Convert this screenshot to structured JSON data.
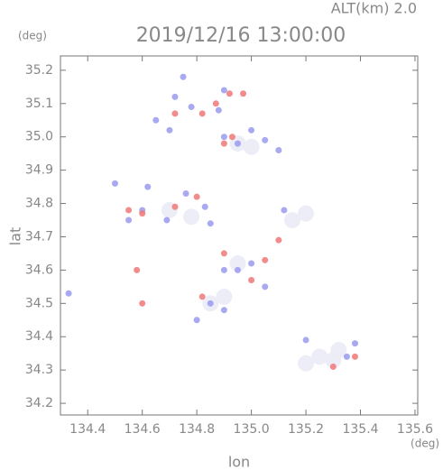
{
  "chart_data": {
    "type": "scatter",
    "title": "2019/12/16 13:00:00",
    "subtitle": "ALT(km) 2.0",
    "x_label": "lon",
    "x_unit": "(deg)",
    "y_label": "lat",
    "y_unit": "(deg)",
    "xlim": [
      134.3,
      135.61
    ],
    "ylim": [
      34.165,
      35.243
    ],
    "xticks": [
      134.4,
      134.6,
      134.8,
      {
        "value": 135,
        "label": "135.0"
      },
      135.2,
      135.4,
      135.6
    ],
    "yticks": [
      34.2,
      34.3,
      34.4,
      34.5,
      34.6,
      34.7,
      34.8,
      34.9,
      {
        "value": 35,
        "label": "35.0"
      },
      35.1,
      35.2
    ],
    "series": [
      {
        "color": "#ebebf6",
        "x": [
          134.95,
          135.0,
          134.7,
          134.78,
          134.95,
          134.85,
          134.9,
          135.25,
          135.3,
          135.32,
          135.2,
          135.2,
          135.15
        ],
        "y": [
          34.98,
          34.97,
          34.78,
          34.76,
          34.62,
          34.5,
          34.52,
          34.34,
          34.33,
          34.36,
          34.32,
          34.77,
          34.75
        ]
      },
      {
        "color": "#9a9af0",
        "x": [
          134.33,
          134.5,
          134.62,
          134.76,
          134.83,
          134.85,
          134.72,
          134.78,
          134.65,
          134.7,
          134.88,
          134.9,
          134.95,
          135.05,
          135.1,
          134.6,
          134.9,
          134.95,
          135.0,
          134.85,
          134.8,
          134.9,
          135.2,
          135.35,
          135.38,
          135.05,
          134.69,
          134.55,
          135.12,
          134.9,
          135.0,
          134.75
        ],
        "y": [
          34.53,
          34.86,
          34.85,
          34.83,
          34.79,
          34.74,
          35.12,
          35.09,
          35.05,
          35.02,
          35.08,
          35.0,
          34.98,
          34.99,
          34.96,
          34.78,
          34.6,
          34.6,
          34.62,
          34.5,
          34.45,
          34.48,
          34.39,
          34.34,
          34.38,
          34.55,
          34.75,
          34.75,
          34.78,
          35.14,
          35.02,
          35.18
        ]
      },
      {
        "color": "#f07878",
        "x": [
          134.92,
          134.97,
          134.87,
          134.72,
          134.82,
          134.9,
          134.93,
          134.55,
          134.6,
          134.72,
          134.8,
          134.9,
          135.0,
          135.1,
          134.6,
          134.82,
          135.38,
          135.3,
          134.58,
          135.05
        ],
        "y": [
          35.13,
          35.13,
          35.1,
          35.07,
          35.07,
          34.98,
          35.0,
          34.78,
          34.77,
          34.79,
          34.82,
          34.65,
          34.57,
          34.69,
          34.5,
          34.52,
          34.34,
          34.31,
          34.6,
          34.63
        ]
      }
    ]
  }
}
